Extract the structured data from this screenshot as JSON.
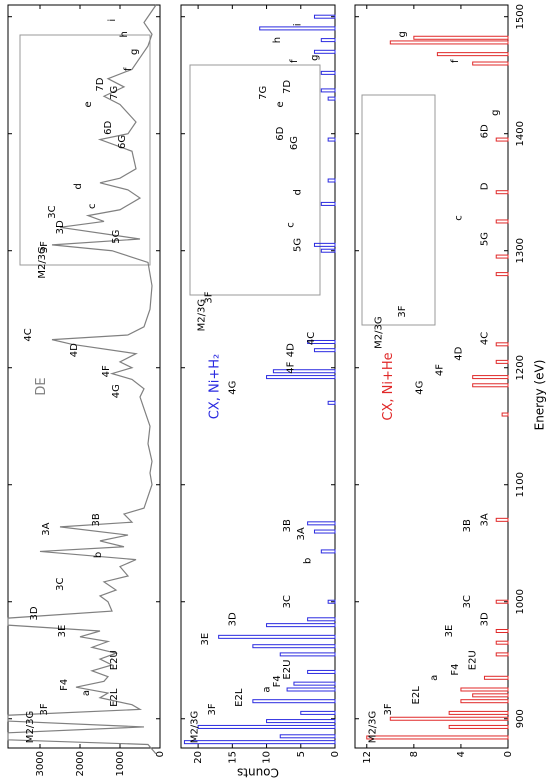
{
  "chart_data": [
    {
      "type": "line",
      "label": "DE",
      "color": "#808080",
      "x": [
        870,
        878,
        882,
        888,
        893,
        898,
        903,
        908,
        912,
        918,
        922,
        927,
        932,
        936,
        941,
        946,
        951,
        956,
        961,
        966,
        970,
        975,
        980,
        986,
        992,
        1000,
        1005,
        1010,
        1017,
        1022,
        1030,
        1036,
        1043,
        1047,
        1052,
        1057,
        1064,
        1068,
        1075,
        1080,
        1090,
        1100,
        1110,
        1120,
        1135,
        1150,
        1165,
        1175,
        1182,
        1190,
        1195,
        1200,
        1205,
        1212,
        1220,
        1224,
        1228,
        1235,
        1250,
        1270,
        1290,
        1300,
        1305,
        1310,
        1320,
        1325,
        1330,
        1335,
        1345,
        1352,
        1358,
        1362,
        1370,
        1385,
        1395,
        1400,
        1410,
        1425,
        1432,
        1440,
        1447,
        1455,
        1465,
        1475,
        1485,
        1495,
        1505,
        1510
      ],
      "values": [
        100,
        300,
        3800,
        3800,
        400,
        3800,
        3800,
        500,
        700,
        1500,
        1300,
        2100,
        1400,
        1300,
        1700,
        1200,
        1500,
        1100,
        1700,
        1300,
        2000,
        1500,
        3800,
        3800,
        1200,
        1300,
        1500,
        1100,
        1400,
        800,
        1000,
        600,
        3000,
        900,
        1500,
        800,
        2500,
        700,
        900,
        400,
        300,
        200,
        250,
        200,
        300,
        250,
        400,
        500,
        400,
        700,
        1200,
        700,
        1000,
        600,
        2200,
        2700,
        800,
        400,
        250,
        200,
        300,
        1200,
        2700,
        500,
        2500,
        1400,
        1800,
        1000,
        500,
        800,
        1500,
        1000,
        600,
        700,
        1500,
        800,
        600,
        1000,
        1400,
        900,
        1300,
        700,
        500,
        300,
        200,
        400,
        200,
        100
      ],
      "xlim": [
        875,
        1510
      ],
      "ylim": [
        0,
        3800
      ],
      "yticks": [
        0,
        1000,
        2000,
        3000
      ],
      "annotations": [
        {
          "text": "M2/3G",
          "x": 893,
          "y": 3250
        },
        {
          "text": "3F",
          "x": 908,
          "y": 2900
        },
        {
          "text": "F4",
          "x": 929,
          "y": 2400
        },
        {
          "text": "a",
          "x": 922,
          "y": 1850
        },
        {
          "text": "E2L",
          "x": 918,
          "y": 1150
        },
        {
          "text": "E2U",
          "x": 950,
          "y": 1150
        },
        {
          "text": "3E",
          "x": 975,
          "y": 2450
        },
        {
          "text": "3D",
          "x": 990,
          "y": 3150
        },
        {
          "text": "3C",
          "x": 1015,
          "y": 2500
        },
        {
          "text": "b",
          "x": 1040,
          "y": 1550
        },
        {
          "text": "3A",
          "x": 1062,
          "y": 2850
        },
        {
          "text": "3B",
          "x": 1070,
          "y": 1600
        },
        {
          "text": "4G",
          "x": 1180,
          "y": 1100
        },
        {
          "text": "4F",
          "x": 1197,
          "y": 1350
        },
        {
          "text": "4D",
          "x": 1215,
          "y": 2150
        },
        {
          "text": "4C",
          "x": 1228,
          "y": 3300
        },
        {
          "text": "5G",
          "x": 1312,
          "y": 1100
        },
        {
          "text": "c",
          "x": 1338,
          "y": 1700
        },
        {
          "text": "d",
          "x": 1355,
          "y": 2050
        },
        {
          "text": "6D",
          "x": 1405,
          "y": 1300
        },
        {
          "text": "6G",
          "x": 1393,
          "y": 950
        },
        {
          "text": "e",
          "x": 1425,
          "y": 1800
        },
        {
          "text": "7G",
          "x": 1435,
          "y": 1150
        },
        {
          "text": "7D",
          "x": 1442,
          "y": 1500
        },
        {
          "text": "f",
          "x": 1455,
          "y": 800
        },
        {
          "text": "g",
          "x": 1470,
          "y": 650
        },
        {
          "text": "h",
          "x": 1485,
          "y": 900
        },
        {
          "text": "i",
          "x": 1497,
          "y": 1200
        },
        {
          "text": "M2/3G",
          "x": 1290,
          "y": 2950
        },
        {
          "text": "3F",
          "x": 1303,
          "y": 2900
        },
        {
          "text": "3D",
          "x": 1320,
          "y": 2500
        },
        {
          "text": "3C",
          "x": 1333,
          "y": 2700
        }
      ]
    },
    {
      "type": "bar",
      "label": "CX, Ni+H₂",
      "color": "#2a2ae0",
      "y_label": "Counts",
      "x": [
        880,
        885,
        893,
        898,
        905,
        915,
        925,
        930,
        940,
        955,
        962,
        970,
        980,
        985,
        1000,
        1043,
        1060,
        1067,
        1170,
        1192,
        1197,
        1215,
        1222,
        1300,
        1305,
        1340,
        1360,
        1395,
        1430,
        1437,
        1452,
        1470,
        1480,
        1490,
        1500
      ],
      "values": [
        22,
        8,
        20,
        10,
        5,
        12,
        7,
        6,
        4,
        8,
        12,
        17,
        10,
        4,
        1,
        2,
        3,
        4,
        1,
        10,
        9,
        3,
        4,
        2,
        3,
        2,
        1,
        1,
        1,
        2,
        2,
        3,
        2,
        11,
        3
      ],
      "xlim": [
        875,
        1510
      ],
      "ylim": [
        0,
        22.5
      ],
      "yticks": [
        0,
        5,
        10,
        15,
        20
      ],
      "annotations": [
        {
          "text": "M2/3G",
          "x": 893,
          "y": 20.5
        },
        {
          "text": "3F",
          "x": 908,
          "y": 18
        },
        {
          "text": "E2L",
          "x": 918,
          "y": 14
        },
        {
          "text": "a",
          "x": 925,
          "y": 10
        },
        {
          "text": "F4",
          "x": 932,
          "y": 8.5
        },
        {
          "text": "E2U",
          "x": 942,
          "y": 7
        },
        {
          "text": "3E",
          "x": 968,
          "y": 19
        },
        {
          "text": "3D",
          "x": 985,
          "y": 15
        },
        {
          "text": "3C",
          "x": 1000,
          "y": 7
        },
        {
          "text": "b",
          "x": 1035,
          "y": 4
        },
        {
          "text": "3A",
          "x": 1058,
          "y": 5
        },
        {
          "text": "3B",
          "x": 1065,
          "y": 7
        },
        {
          "text": "4G",
          "x": 1183,
          "y": 15
        },
        {
          "text": "4F",
          "x": 1200,
          "y": 6.5
        },
        {
          "text": "4D",
          "x": 1215,
          "y": 6.5
        },
        {
          "text": "4C",
          "x": 1225,
          "y": 3.5
        },
        {
          "text": "5G",
          "x": 1305,
          "y": 5.5
        },
        {
          "text": "c",
          "x": 1322,
          "y": 6.5
        },
        {
          "text": "d",
          "x": 1350,
          "y": 5.5
        },
        {
          "text": "6G",
          "x": 1392,
          "y": 6
        },
        {
          "text": "6D",
          "x": 1400,
          "y": 8
        },
        {
          "text": "e",
          "x": 1425,
          "y": 8
        },
        {
          "text": "7G",
          "x": 1435,
          "y": 10.5
        },
        {
          "text": "7D",
          "x": 1440,
          "y": 7
        },
        {
          "text": "f",
          "x": 1462,
          "y": 6
        },
        {
          "text": "g",
          "x": 1465,
          "y": 3
        },
        {
          "text": "h",
          "x": 1480,
          "y": 8.5
        },
        {
          "text": "i",
          "x": 1493,
          "y": 5.5
        },
        {
          "text": "M2/3G",
          "x": 1245,
          "y": 19.5
        },
        {
          "text": "3F",
          "x": 1260,
          "y": 18.5
        }
      ]
    },
    {
      "type": "bar",
      "label": "CX, Ni+He",
      "color": "#e02828",
      "x_label": "Energy (eV)",
      "x": [
        884,
        893,
        900,
        905,
        915,
        920,
        925,
        935,
        955,
        965,
        975,
        1000,
        1070,
        1160,
        1185,
        1192,
        1205,
        1220,
        1280,
        1295,
        1325,
        1350,
        1395,
        1460,
        1468,
        1478,
        1482
      ],
      "values": [
        12,
        5,
        10,
        5,
        4,
        3,
        4,
        2,
        1,
        1,
        1,
        1,
        1,
        0.5,
        3,
        3,
        1,
        1,
        1,
        1,
        1,
        1,
        1,
        3,
        6,
        10,
        8
      ],
      "xlim": [
        875,
        1510
      ],
      "ylim": [
        0,
        13
      ],
      "xticks": [
        900,
        1000,
        1100,
        1200,
        1300,
        1400,
        1500
      ],
      "yticks": [
        0,
        4,
        8,
        12
      ],
      "annotations": [
        {
          "text": "M2/3G",
          "x": 893,
          "y": 11.5
        },
        {
          "text": "3F",
          "x": 908,
          "y": 10.2
        },
        {
          "text": "E2L",
          "x": 920,
          "y": 7.8
        },
        {
          "text": "a",
          "x": 935,
          "y": 6.3
        },
        {
          "text": "F4",
          "x": 942,
          "y": 4.5
        },
        {
          "text": "E2U",
          "x": 950,
          "y": 3
        },
        {
          "text": "3E",
          "x": 975,
          "y": 5
        },
        {
          "text": "3D",
          "x": 985,
          "y": 2
        },
        {
          "text": "3C",
          "x": 1000,
          "y": 3.5
        },
        {
          "text": "3B",
          "x": 1065,
          "y": 3.5
        },
        {
          "text": "3A",
          "x": 1070,
          "y": 2
        },
        {
          "text": "4G",
          "x": 1183,
          "y": 7.5
        },
        {
          "text": "4F",
          "x": 1198,
          "y": 5.8
        },
        {
          "text": "4D",
          "x": 1212,
          "y": 4.2
        },
        {
          "text": "4C",
          "x": 1225,
          "y": 2
        },
        {
          "text": "c",
          "x": 1328,
          "y": 4.2
        },
        {
          "text": "5G",
          "x": 1310,
          "y": 2
        },
        {
          "text": "D",
          "x": 1355,
          "y": 2
        },
        {
          "text": "6D",
          "x": 1402,
          "y": 2
        },
        {
          "text": "f",
          "x": 1462,
          "y": 4.5
        },
        {
          "text": "g",
          "x": 1485,
          "y": 9
        },
        {
          "text": "g",
          "x": 1418,
          "y": 1.1
        },
        {
          "text": "M2/3G",
          "x": 1230,
          "y": 11
        },
        {
          "text": "3F",
          "x": 1248,
          "y": 9
        }
      ]
    }
  ]
}
